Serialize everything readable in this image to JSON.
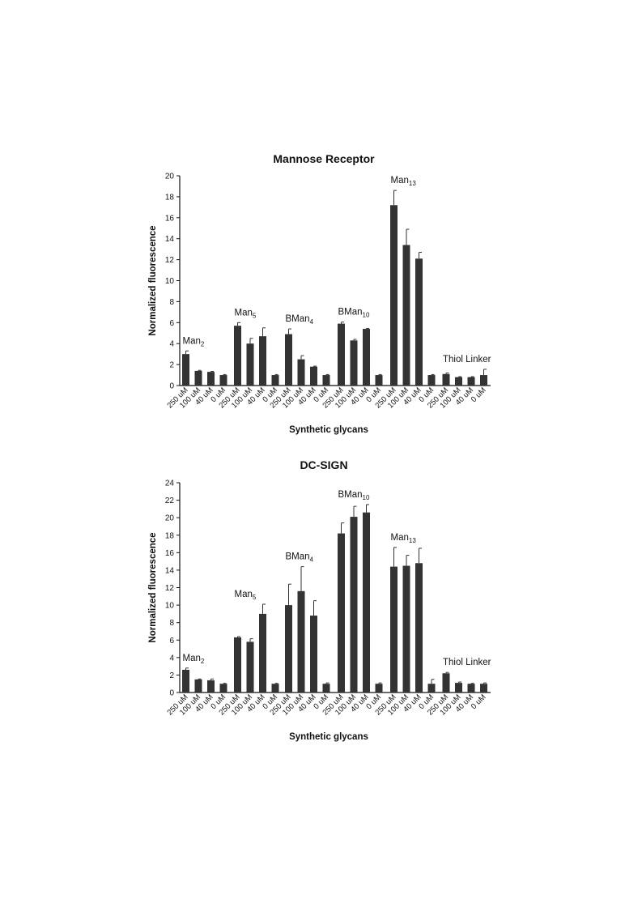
{
  "chart_data": [
    {
      "type": "bar",
      "title": "Mannose Receptor",
      "xlabel": "Synthetic glycans",
      "ylabel": "Normalized fluorescence",
      "ylim": [
        0,
        20
      ],
      "yticks": [
        0,
        2,
        4,
        6,
        8,
        10,
        12,
        14,
        16,
        18,
        20
      ],
      "grid": false,
      "error_bars": true,
      "groups": [
        {
          "base": "Man",
          "sub": "2",
          "categories": [
            "250 uM",
            "100 uM",
            "40 uM",
            "0 uM"
          ],
          "values": [
            3.0,
            1.4,
            1.3,
            1.0
          ],
          "errors": [
            0.3,
            0.05,
            0.05,
            0.05
          ]
        },
        {
          "base": "Man",
          "sub": "5",
          "categories": [
            "250 uM",
            "100 uM",
            "40 uM",
            "0 uM"
          ],
          "values": [
            5.7,
            4.0,
            4.7,
            1.0
          ],
          "errors": [
            0.3,
            0.5,
            0.8,
            0.05
          ]
        },
        {
          "base": "BMan",
          "sub": "4",
          "categories": [
            "250 uM",
            "100 uM",
            "40 uM",
            "0 uM"
          ],
          "values": [
            4.9,
            2.5,
            1.8,
            1.0
          ],
          "errors": [
            0.5,
            0.35,
            0.05,
            0.05
          ]
        },
        {
          "base": "BMan",
          "sub": "10",
          "categories": [
            "250 uM",
            "100 uM",
            "40 uM",
            "0 uM"
          ],
          "values": [
            5.9,
            4.3,
            5.4,
            1.0
          ],
          "errors": [
            0.15,
            0.1,
            0.05,
            0.05
          ]
        },
        {
          "base": "Man",
          "sub": "13",
          "categories": [
            "250 uM",
            "100 uM",
            "40 uM",
            "0 uM"
          ],
          "values": [
            17.2,
            13.4,
            12.1,
            1.0
          ],
          "errors": [
            1.4,
            1.5,
            0.6,
            0.05
          ]
        },
        {
          "base": "Thiol Linker",
          "sub": "",
          "categories": [
            "250 uM",
            "100 uM",
            "40 uM",
            "0 uM"
          ],
          "values": [
            1.1,
            0.8,
            0.8,
            1.0
          ],
          "errors": [
            0.1,
            0.05,
            0.05,
            0.55
          ]
        }
      ]
    },
    {
      "type": "bar",
      "title": "DC-SIGN",
      "xlabel": "Synthetic glycans",
      "ylabel": "Normalized fluorescence",
      "ylim": [
        0,
        24
      ],
      "yticks": [
        0,
        2,
        4,
        6,
        8,
        10,
        12,
        14,
        16,
        18,
        20,
        22,
        24
      ],
      "grid": false,
      "error_bars": true,
      "groups": [
        {
          "base": "Man",
          "sub": "2",
          "categories": [
            "250 uM",
            "100 uM",
            "40 uM",
            "0 uM"
          ],
          "values": [
            2.6,
            1.5,
            1.4,
            1.0
          ],
          "errors": [
            0.2,
            0.05,
            0.15,
            0.05
          ]
        },
        {
          "base": "Man",
          "sub": "5",
          "categories": [
            "250 uM",
            "100 uM",
            "40 uM",
            "0 uM"
          ],
          "values": [
            6.3,
            5.8,
            9.0,
            1.0
          ],
          "errors": [
            0.1,
            0.35,
            1.1,
            0.05
          ]
        },
        {
          "base": "BMan",
          "sub": "4",
          "categories": [
            "250 uM",
            "100 uM",
            "40 uM",
            "0 uM"
          ],
          "values": [
            10.0,
            11.6,
            8.8,
            1.0
          ],
          "errors": [
            2.4,
            2.8,
            1.7,
            0.1
          ]
        },
        {
          "base": "BMan",
          "sub": "10",
          "categories": [
            "250 uM",
            "100 uM",
            "40 uM",
            "0 uM"
          ],
          "values": [
            18.2,
            20.1,
            20.6,
            1.0
          ],
          "errors": [
            1.2,
            1.2,
            0.9,
            0.1
          ]
        },
        {
          "base": "Man",
          "sub": "13",
          "categories": [
            "250 uM",
            "100 uM",
            "40 uM",
            "0 uM"
          ],
          "values": [
            14.4,
            14.5,
            14.8,
            1.0
          ],
          "errors": [
            2.2,
            1.2,
            1.7,
            0.5
          ]
        },
        {
          "base": "Thiol Linker",
          "sub": "",
          "categories": [
            "250 uM",
            "100 uM",
            "40 uM",
            "0 uM"
          ],
          "values": [
            2.2,
            1.1,
            1.0,
            1.0
          ],
          "errors": [
            0.1,
            0.1,
            0.05,
            0.1
          ]
        }
      ]
    }
  ],
  "colors": {
    "bar": "#333333",
    "axis": "#111111"
  }
}
